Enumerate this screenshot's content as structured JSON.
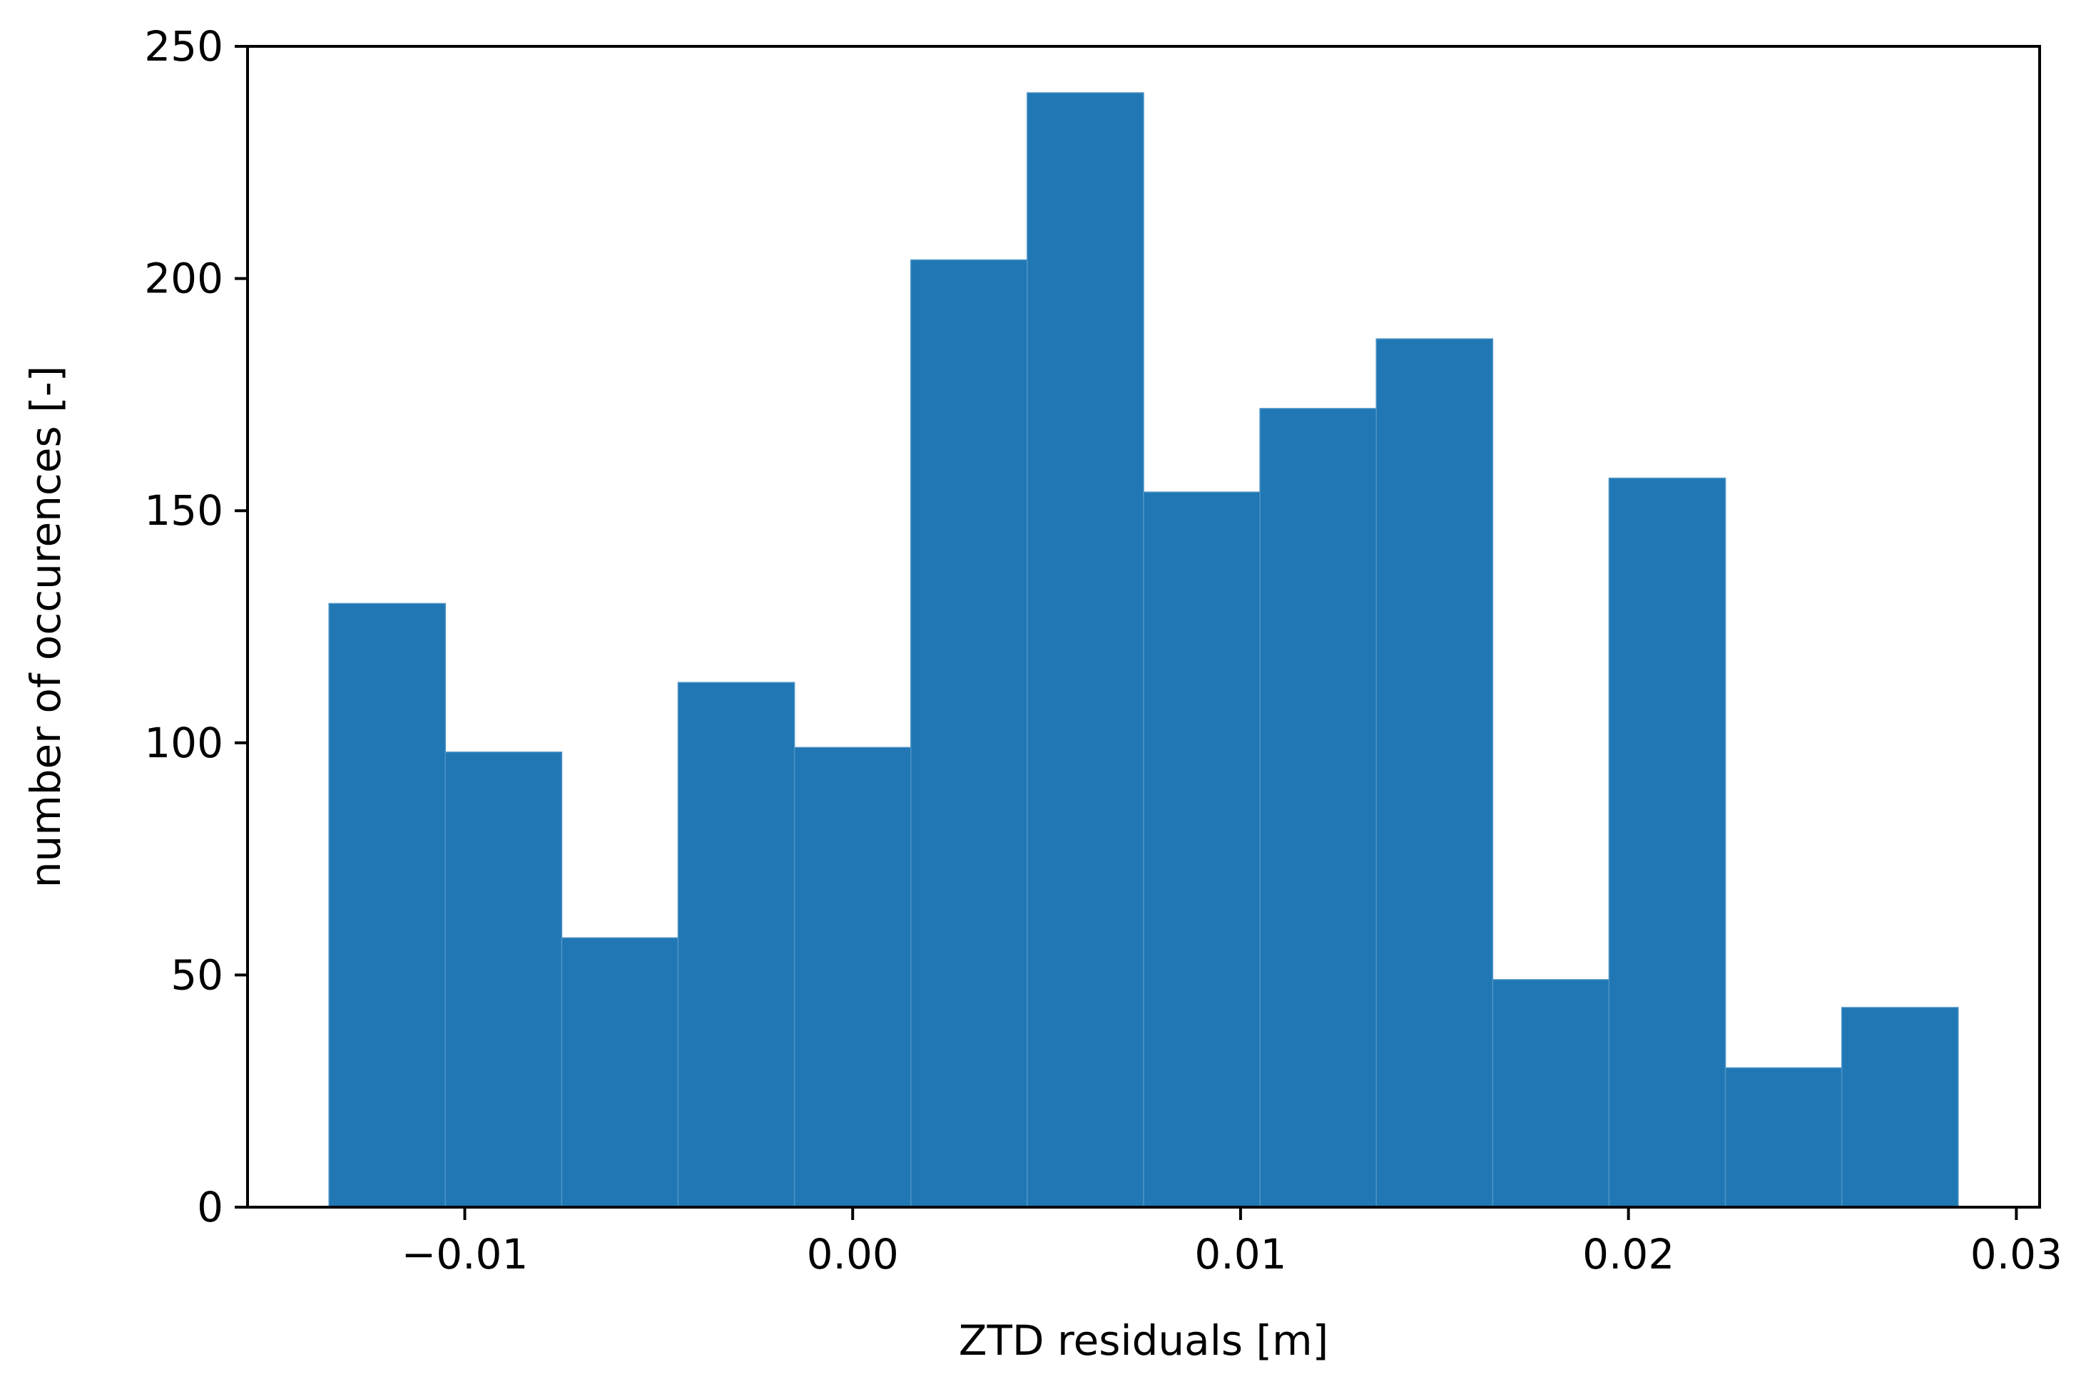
{
  "chart_data": {
    "type": "bar",
    "subtype": "histogram",
    "title": "",
    "xlabel": "ZTD residuals [m]",
    "ylabel": "number of occurences [-]",
    "xlim": [
      -0.0156,
      0.0306
    ],
    "ylim": [
      0,
      250
    ],
    "xticks": [
      -0.01,
      0.0,
      0.01,
      0.02,
      0.03
    ],
    "xtick_labels": [
      "−0.01",
      "0.00",
      "0.01",
      "0.02",
      "0.03"
    ],
    "yticks": [
      0,
      50,
      100,
      150,
      200,
      250
    ],
    "ytick_labels": [
      "0",
      "50",
      "100",
      "150",
      "200",
      "250"
    ],
    "bin_edges": [
      -0.0135,
      -0.0105,
      -0.0075,
      -0.0045,
      -0.0015,
      0.0015,
      0.0045,
      0.0075,
      0.0105,
      0.0135,
      0.0165,
      0.0195,
      0.0225,
      0.0255,
      0.0285
    ],
    "values": [
      130,
      98,
      58,
      113,
      99,
      204,
      240,
      154,
      172,
      187,
      49,
      157,
      30,
      43
    ],
    "grid": false,
    "legend": "none"
  },
  "colors": {
    "bar_fill": "#2077b4",
    "bar_edge": "#4c93c6",
    "axis": "#000000",
    "background": "#ffffff"
  }
}
